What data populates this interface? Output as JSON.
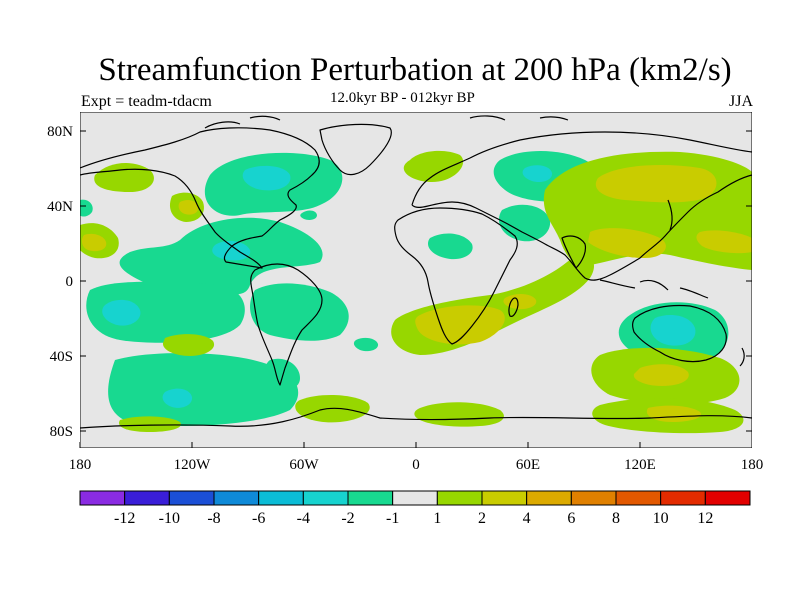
{
  "title": "Streamfunction Perturbation at 200 hPa (km2/s)",
  "subtitle": "12.0kyr BP - 012kyr BP",
  "left_label": "Expt = teadm-tdacm",
  "right_label": "JJA",
  "axes": {
    "lat_ticks": [
      "80N",
      "40N",
      "0",
      "40S",
      "80S"
    ],
    "lon_ticks": [
      "180",
      "120W",
      "60W",
      "0",
      "60E",
      "120E",
      "180"
    ]
  },
  "colorbar": {
    "colors": [
      "#8a2be2",
      "#3a1ed8",
      "#1b4fd6",
      "#0f8ad8",
      "#0bbcd6",
      "#17d3cf",
      "#18d990",
      "#e6e6e6",
      "#97d700",
      "#c9cc00",
      "#dcaa00",
      "#e08000",
      "#e25800",
      "#e32b00",
      "#e20000"
    ],
    "labels": [
      "-12",
      "-10",
      "-8",
      "-6",
      "-4",
      "-2",
      "-1",
      "1",
      "2",
      "4",
      "6",
      "8",
      "10",
      "12"
    ]
  },
  "fill_colors": {
    "background": "#e6e6e6",
    "neg_1_2": "#18d990",
    "neg_2_4": "#17d3cf",
    "pos_1_2": "#97d700",
    "pos_2_4": "#c9cc00"
  }
}
